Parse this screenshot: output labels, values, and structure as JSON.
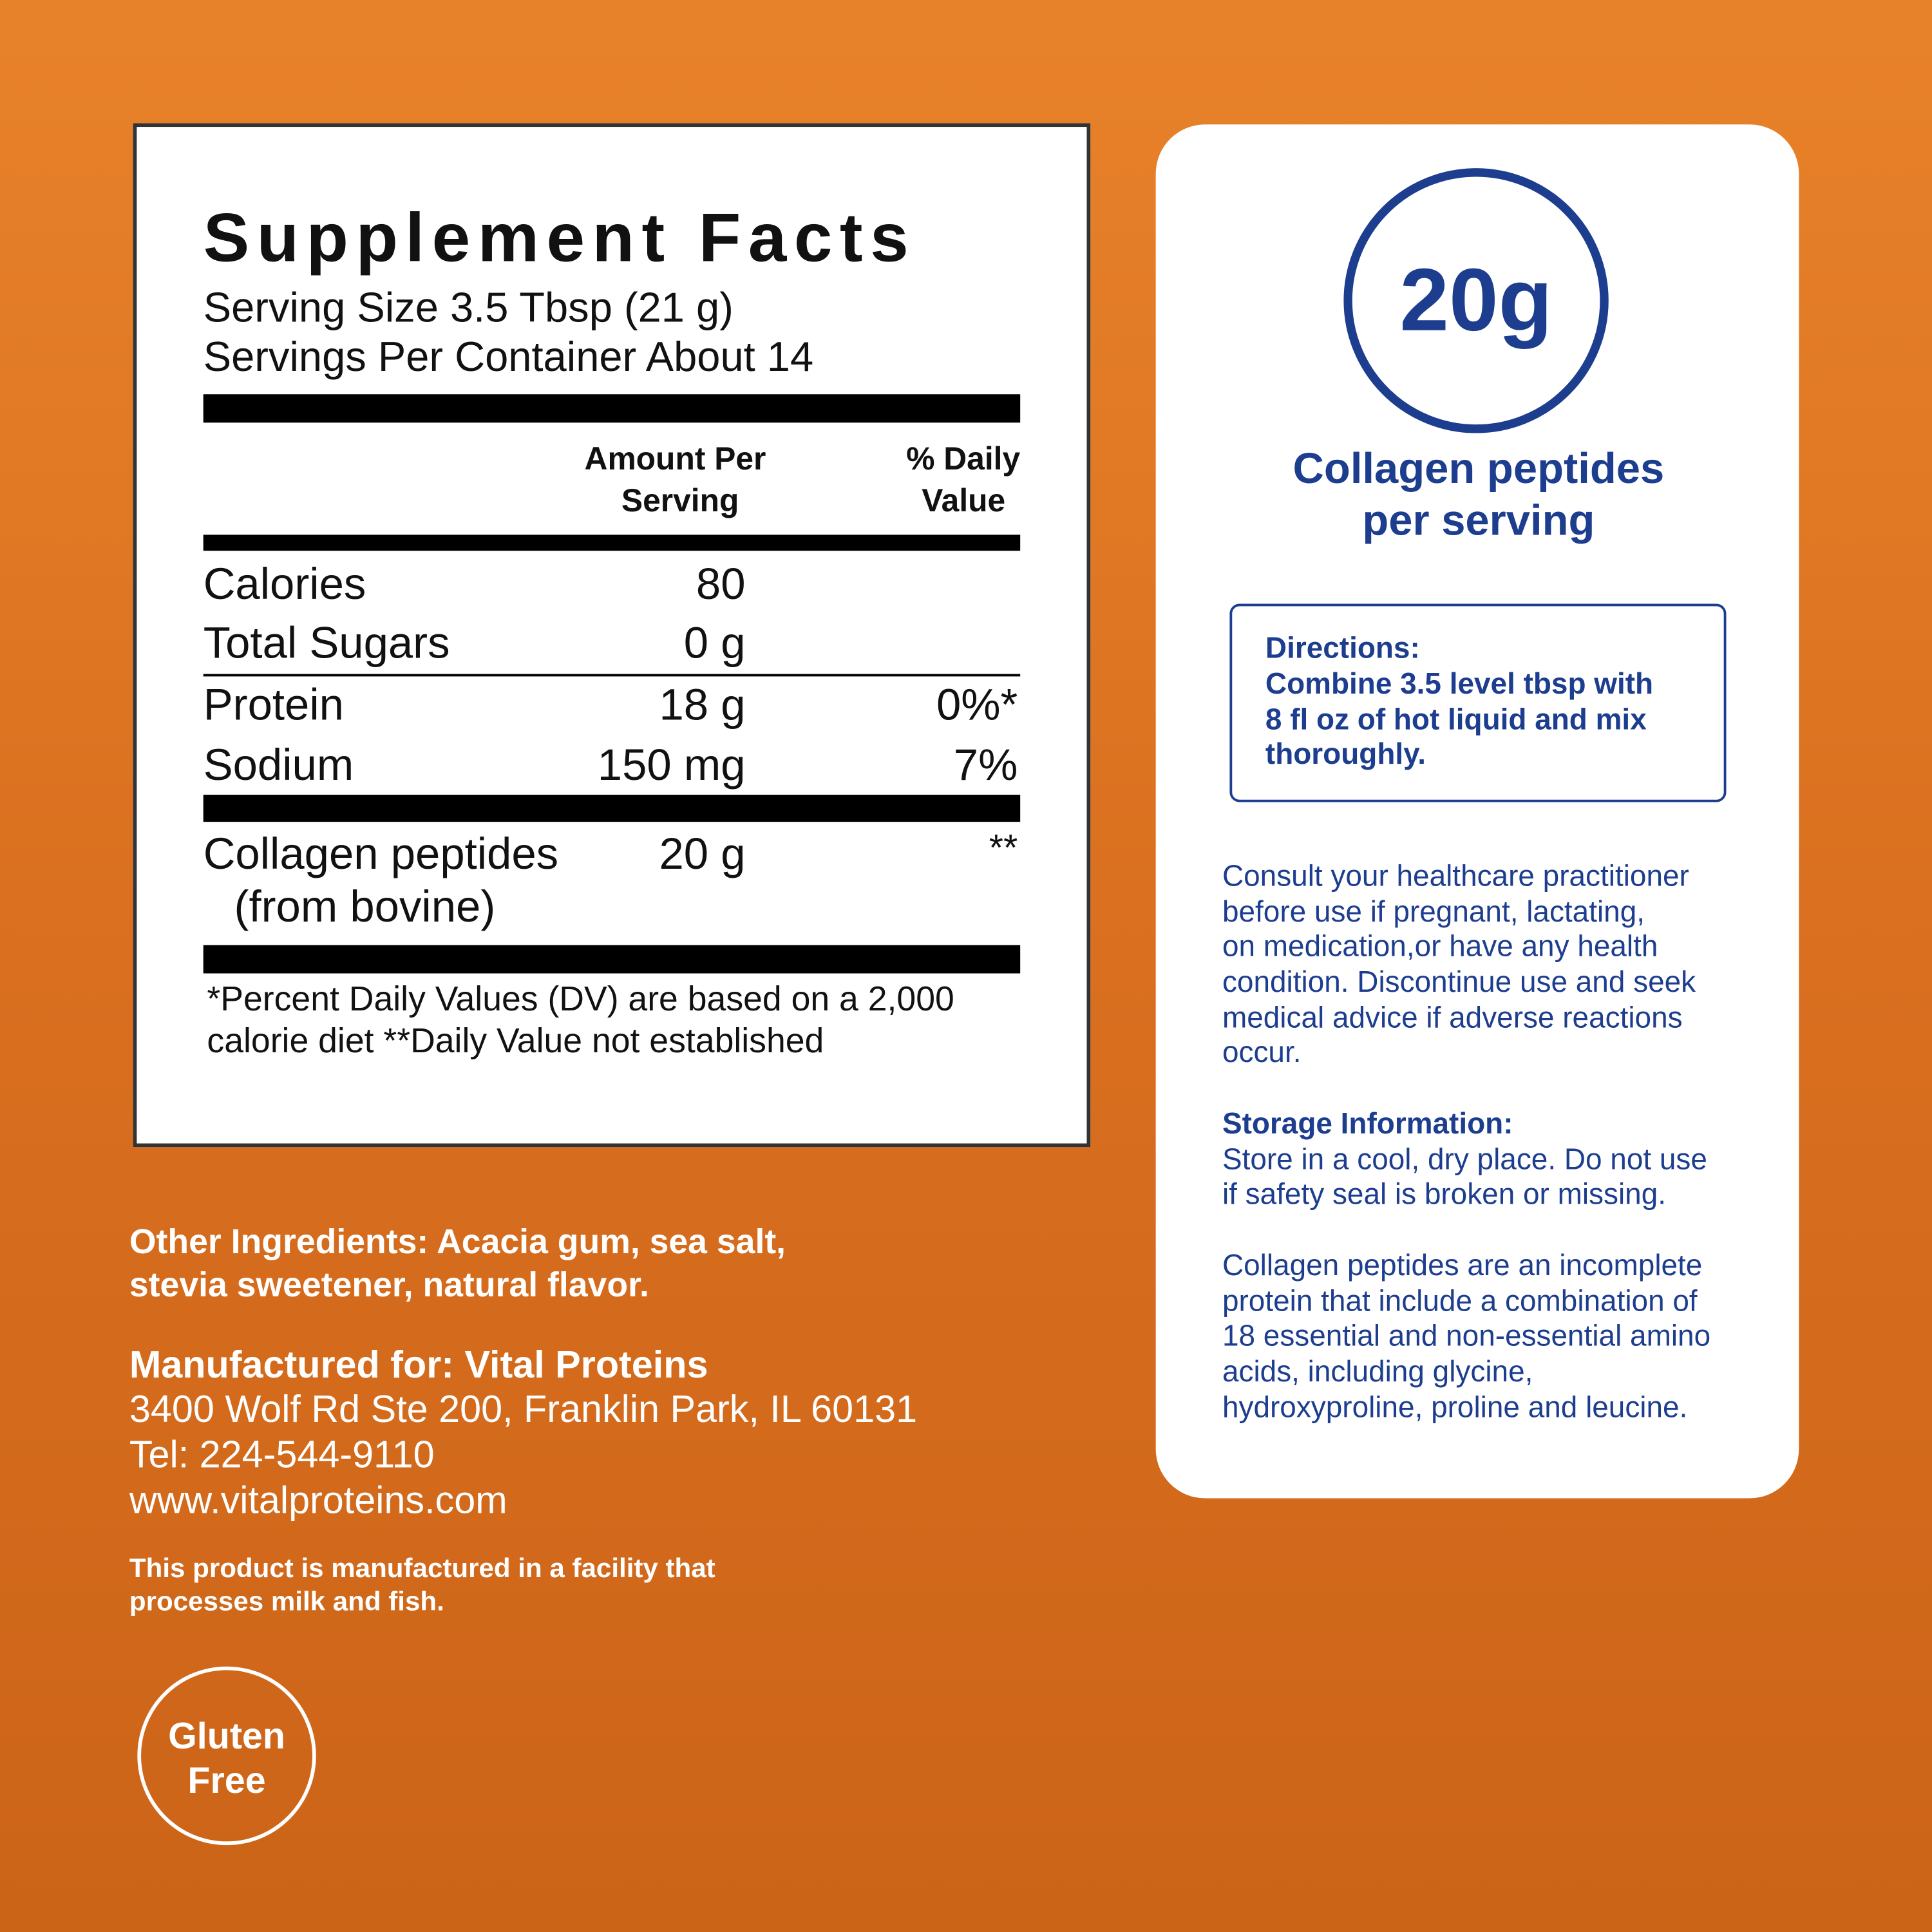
{
  "supplement_facts": {
    "title": "Supplement Facts",
    "serving_size": "Serving Size 3.5 Tbsp (21 g)",
    "servings_per_container": "Servings Per Container About 14",
    "header": {
      "amount": [
        "Amount Per",
        "Serving"
      ],
      "daily_value": [
        "% Daily",
        "Value"
      ]
    },
    "rows": [
      {
        "name": "Calories",
        "amount": "80"
      },
      {
        "name": "Total Sugars",
        "amount": "0 g"
      },
      {
        "name": "Protein",
        "amount": "18 g",
        "daily_value": "0%*"
      },
      {
        "name": "Sodium",
        "amount": "150 mg",
        "daily_value": "7%"
      },
      {
        "name": [
          "Collagen peptides",
          "(from bovine)"
        ],
        "amount": "20 g",
        "daily_value": "**"
      }
    ],
    "footnote": [
      "*Percent Daily Values (DV) are based on a 2,000",
      "calorie diet **Daily Value not established"
    ]
  },
  "other_ingredients": [
    "Other Ingredients: Acacia gum, sea salt,",
    "stevia sweetener, natural flavor."
  ],
  "manufacturer": {
    "heading": "Manufactured for: Vital Proteins",
    "address": "3400 Wolf Rd Ste 200, Franklin Park, IL 60131",
    "phone": "Tel: 224-544-9110",
    "website": "www.vitalproteins.com"
  },
  "allergen": [
    "This product is manufactured in a facility that",
    "processes milk and fish."
  ],
  "badge": [
    "Gluten",
    "Free"
  ],
  "highlight": {
    "amount": "20g",
    "label": [
      "Collagen peptides",
      "per serving"
    ]
  },
  "directions": {
    "heading": "Directions:",
    "lines": [
      "Combine 3.5 level tbsp with",
      "8 fl oz of hot liquid and mix",
      "thoroughly."
    ]
  },
  "warning": [
    "Consult your healthcare practitioner",
    "before use if pregnant, lactating,",
    "on medication,or have any health",
    "condition. Discontinue use and seek",
    "medical advice if adverse reactions",
    "occur."
  ],
  "storage": {
    "heading": "Storage Information:",
    "lines": [
      "Store in a cool, dry place. Do not use",
      "if safety seal is broken or missing."
    ]
  },
  "collagen_info": [
    "Collagen peptides are an incomplete",
    "protein that include a combination of",
    "18 essential and non-essential amino",
    "acids, including glycine,",
    "hydroxyproline, proline and leucine."
  ]
}
